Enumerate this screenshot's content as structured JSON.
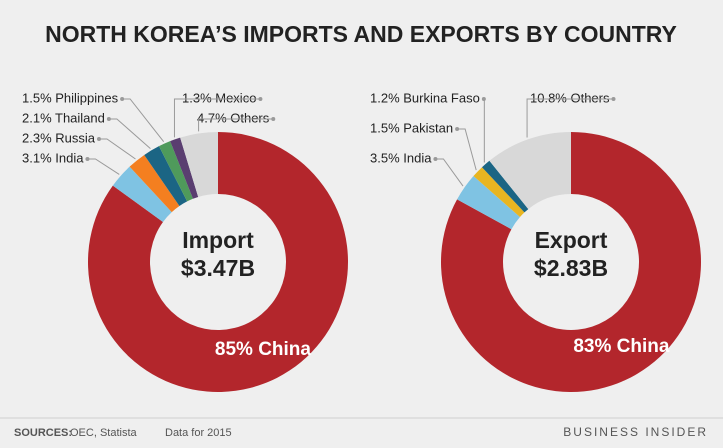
{
  "title": "NORTH KOREA’S IMPORTS AND EXPORTS BY COUNTRY",
  "footer": {
    "sources_label": "SOURCES:",
    "sources": "OEC, Statista",
    "note": "Data for 2015",
    "brand": "BUSINESS INSIDER"
  },
  "chart_data": [
    {
      "type": "donut",
      "title": "Import",
      "subtitle": "$3.47B",
      "categories": [
        "China",
        "India",
        "Russia",
        "Thailand",
        "Philippines",
        "Mexico",
        "Others"
      ],
      "values": [
        85,
        3.1,
        2.3,
        2.1,
        1.5,
        1.3,
        4.7
      ],
      "value_labels": [
        "85% China",
        "3.1% India",
        "2.3% Russia",
        "2.1% Thailand",
        "1.5% Philippines",
        "1.3% Mexico",
        "4.7% Others"
      ],
      "colors": [
        "#b3262c",
        "#7fc3e3",
        "#f47f20",
        "#1b6584",
        "#4f9a5b",
        "#5a3e70",
        "#d8d8d8"
      ]
    },
    {
      "type": "donut",
      "title": "Export",
      "subtitle": "$2.83B",
      "categories": [
        "China",
        "India",
        "Pakistan",
        "Burkina Faso",
        "Others"
      ],
      "values": [
        83,
        3.5,
        1.5,
        1.2,
        10.8
      ],
      "value_labels": [
        "83% China",
        "3.5% India",
        "1.5% Pakistan",
        "1.2% Burkina Faso",
        "10.8% Others"
      ],
      "colors": [
        "#b3262c",
        "#7fc3e3",
        "#e8b521",
        "#1b6584",
        "#d8d8d8"
      ]
    }
  ]
}
